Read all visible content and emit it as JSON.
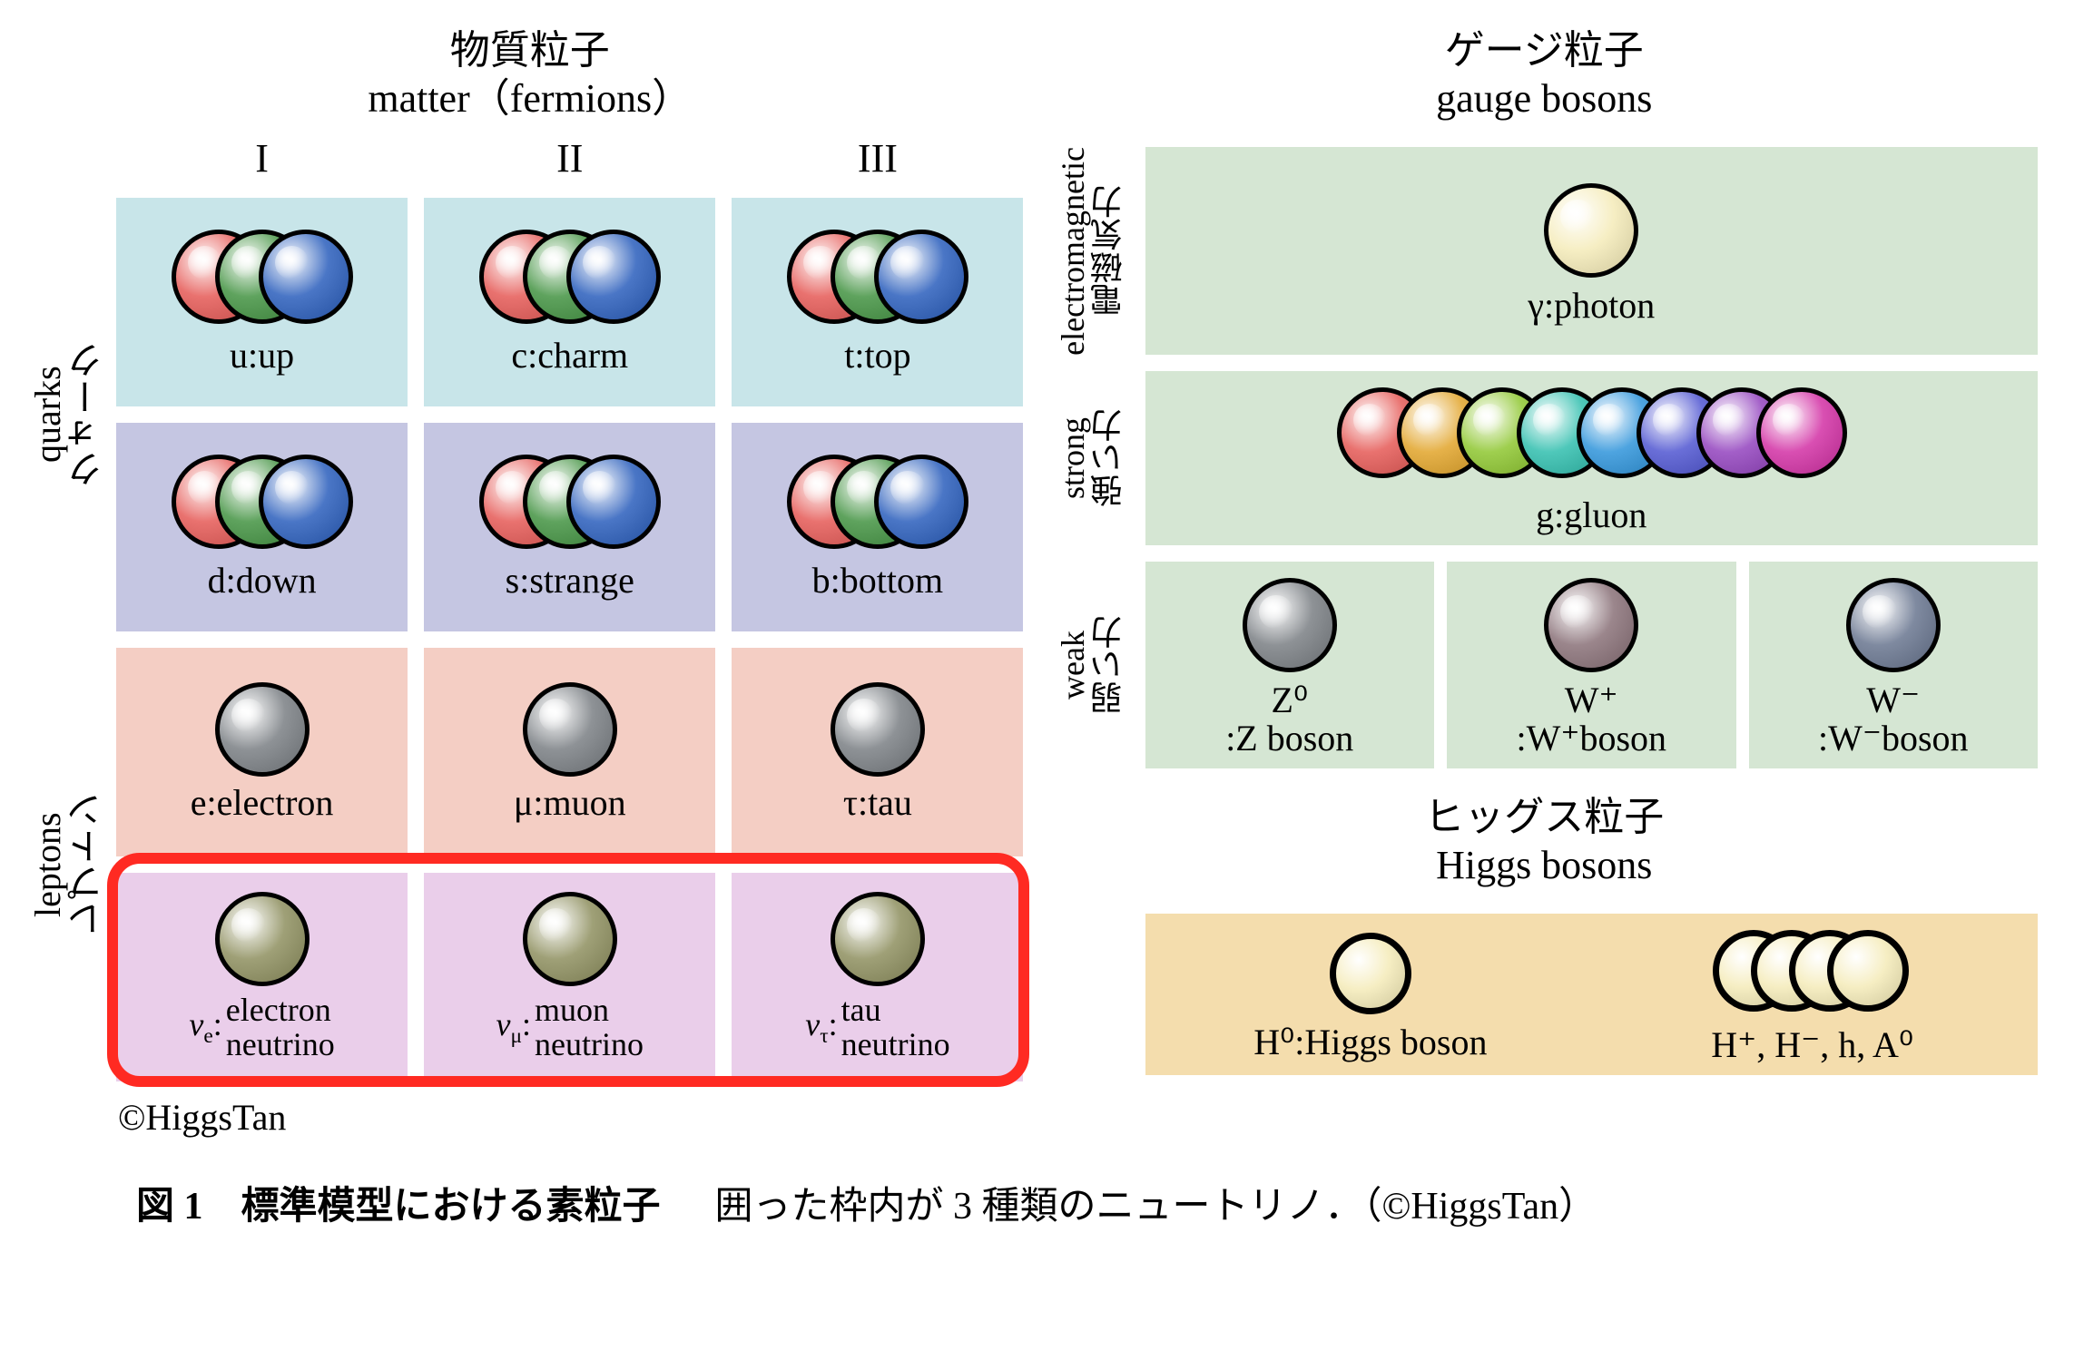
{
  "colors": {
    "quark_row1_bg": "#c8e5e9",
    "quark_row2_bg": "#c5c6e2",
    "lepton_row1_bg": "#f4cec4",
    "lepton_row2_bg": "#eaceea",
    "gauge_bg": "#d5e6d3",
    "higgs_bg": "#f4ddad",
    "highlight_border": "#ff2a22",
    "sphere_border": "#000000",
    "rgb_r": "#e9726f",
    "rgb_g": "#5fa35e",
    "rgb_b": "#4a76c6",
    "grey_sphere": "#8e9296",
    "olive_sphere": "#9fa077",
    "photon_sphere": "#f6eec3",
    "gluon_colors": [
      "#e9726f",
      "#e6b24a",
      "#9fcf4f",
      "#4fc8ba",
      "#4ea4e0",
      "#6a6fd8",
      "#a35fc8",
      "#d94fb2"
    ],
    "z_sphere": "#8e9296",
    "w_plus_sphere": "#9b868c",
    "w_minus_sphere": "#7f8aa0"
  },
  "fonts": {
    "base_family": "Times New Roman, Yu Mincho, serif",
    "title_size": 44,
    "cell_label_size": 40
  },
  "left": {
    "title_jp": "物質粒子",
    "title_en": "matter（fermions）",
    "generations": [
      "I",
      "II",
      "III"
    ],
    "row_labels": {
      "quarks_jp": "クォーク",
      "quarks_en": "quarks",
      "leptons_jp": "レプトン",
      "leptons_en": "leptons"
    },
    "quarks": [
      [
        "u:up",
        "c:charm",
        "t:top"
      ],
      [
        "d:down",
        "s:strange",
        "b:bottom"
      ]
    ],
    "leptons_charged": [
      "e:electron",
      "μ:muon",
      "τ:tau"
    ],
    "neutrinos": [
      {
        "pre": "ν",
        "sub": "e",
        "line1": "electron",
        "line2": "neutrino"
      },
      {
        "pre": "ν",
        "sub": "μ",
        "line1": "muon",
        "line2": "neutrino"
      },
      {
        "pre": "ν",
        "sub": "τ",
        "line1": "tau",
        "line2": "neutrino"
      }
    ],
    "copyright": "©HiggsTan"
  },
  "right": {
    "gauge_title_jp": "ゲージ粒子",
    "gauge_title_en": "gauge bosons",
    "em_jp": "電磁気力",
    "em_en": "electromagnetic",
    "photon_label": "γ:photon",
    "strong_jp": "強い力",
    "strong_en": "strong",
    "gluon_label": "g:gluon",
    "weak_jp": "弱い力",
    "weak_en": "weak",
    "weak_items": [
      {
        "top": "Z⁰",
        "bottom": ":Z boson"
      },
      {
        "top": "W⁺",
        "bottom": ":W⁺boson"
      },
      {
        "top": "W⁻",
        "bottom": ":W⁻boson"
      }
    ],
    "higgs_title_jp": "ヒッグス粒子",
    "higgs_title_en": "Higgs bosons",
    "higgs_left": "H⁰:Higgs boson",
    "higgs_right": "H⁺, H⁻, h, A⁰"
  },
  "caption": {
    "left": "図 1　標準模型における素粒子",
    "right": "囲った枠内が 3 種類のニュートリノ．（©HiggsTan）"
  }
}
